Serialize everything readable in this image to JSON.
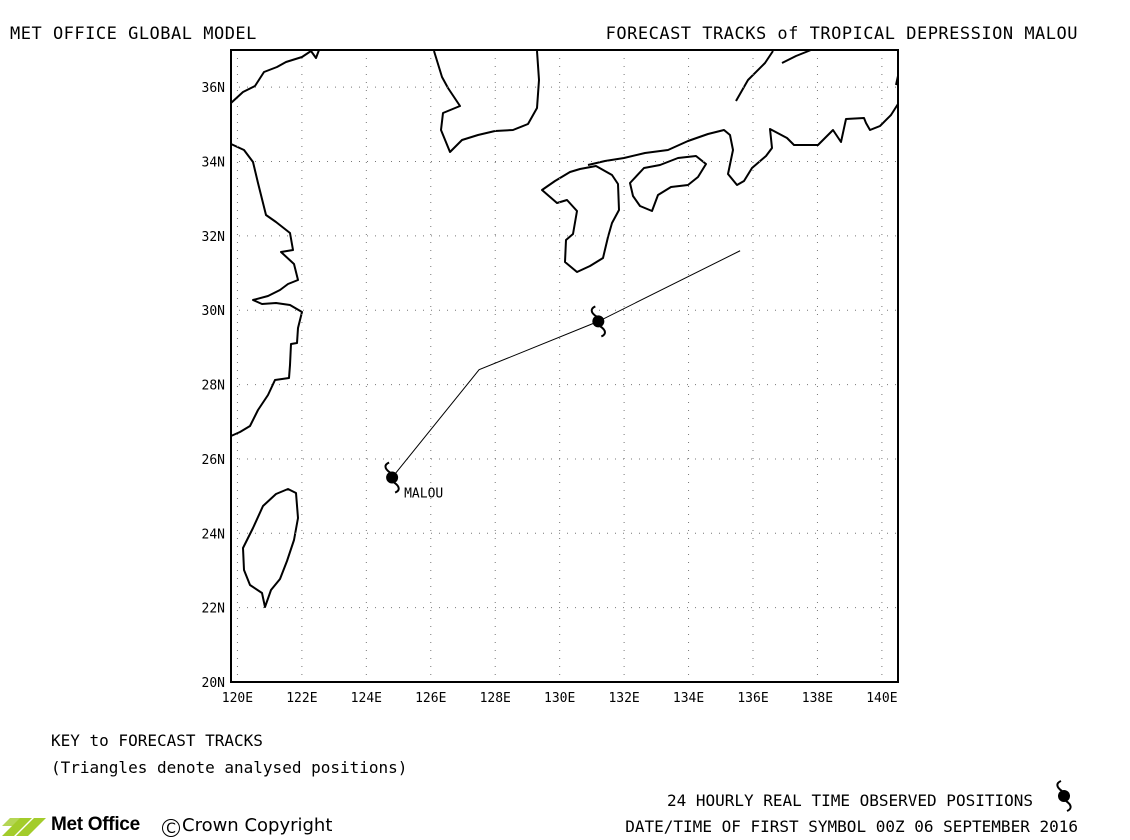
{
  "header": {
    "left_title": "MET OFFICE GLOBAL MODEL",
    "right_title": "FORECAST TRACKS of TROPICAL DEPRESSION MALOU"
  },
  "map": {
    "x_ticks": [
      "120E",
      "122E",
      "124E",
      "126E",
      "128E",
      "130E",
      "132E",
      "134E",
      "136E",
      "138E",
      "140E"
    ],
    "y_ticks": [
      "20N",
      "22N",
      "24N",
      "26N",
      "28N",
      "30N",
      "32N",
      "34N",
      "36N"
    ],
    "lon_range": [
      119.8,
      140.5
    ],
    "lat_range": [
      20,
      37
    ],
    "grid": "dotted",
    "storm_label": "MALOU",
    "observed_positions": [
      {
        "lon": 124.8,
        "lat": 25.5
      },
      {
        "lon": 131.2,
        "lat": 29.7
      }
    ],
    "forecast_track": [
      {
        "lon": 124.8,
        "lat": 25.5
      },
      {
        "lon": 127.5,
        "lat": 28.4
      },
      {
        "lon": 131.2,
        "lat": 29.7
      },
      {
        "lon": 135.6,
        "lat": 31.6
      }
    ]
  },
  "legend": {
    "key_title": "KEY to FORECAST TRACKS",
    "key_note": "(Triangles denote analysed positions)",
    "observed_label": "24 HOURLY REAL TIME OBSERVED POSITIONS",
    "observed_icon": "cyclone-icon",
    "datetime": "DATE/TIME OF FIRST SYMBOL 00Z 06 SEPTEMBER 2016"
  },
  "footer": {
    "logo_text": "Met Office",
    "copyright_symbol": "C",
    "copyright_text": "Crown Copyright"
  }
}
